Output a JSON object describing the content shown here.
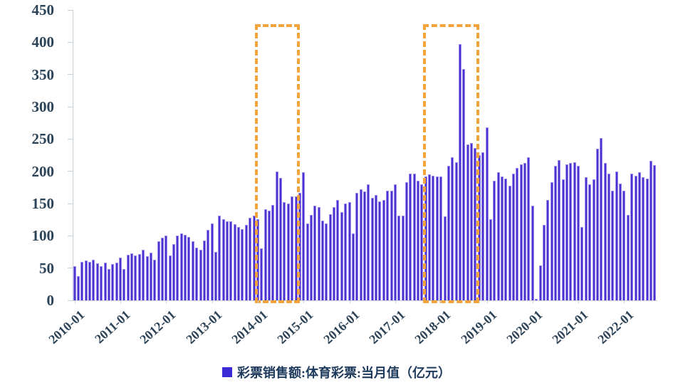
{
  "chart_data": {
    "type": "bar",
    "title": "",
    "legend": "彩票销售额:体育彩票:当月值（亿元）",
    "legend_position": "bottom-center",
    "grid": false,
    "start_month": "2010-01",
    "end_month": "2022-09",
    "ylim": [
      0,
      450
    ],
    "y_ticks": [
      0,
      50,
      100,
      150,
      200,
      250,
      300,
      350,
      400,
      450
    ],
    "x_tick_labels": [
      "2010-01",
      "2011-01",
      "2012-01",
      "2013-01",
      "2014-01",
      "2015-01",
      "2016-01",
      "2017-01",
      "2018-01",
      "2019-01",
      "2020-01",
      "2021-01",
      "2022-01"
    ],
    "bar_color": "#4a31d0",
    "bar_edge_color": "#9a8cec",
    "highlight_color": "#f2a33c",
    "axis_text_color": "#2c4357",
    "highlights": [
      {
        "start": "2013-12",
        "end": "2014-12"
      },
      {
        "start": "2017-08",
        "end": "2018-11"
      }
    ],
    "values": [
      53,
      38,
      60,
      62,
      60,
      63,
      57,
      53,
      58,
      48,
      56,
      58,
      66,
      48,
      71,
      73,
      70,
      72,
      78,
      68,
      74,
      63,
      92,
      97,
      100,
      69,
      87,
      100,
      104,
      102,
      98,
      92,
      82,
      78,
      93,
      109,
      119,
      75,
      131,
      126,
      122,
      122,
      118,
      114,
      110,
      117,
      128,
      131,
      126,
      80,
      141,
      139,
      148,
      200,
      190,
      152,
      150,
      161,
      161,
      167,
      198,
      119,
      132,
      147,
      145,
      123,
      119,
      134,
      145,
      156,
      137,
      150,
      152,
      104,
      167,
      172,
      169,
      180,
      159,
      163,
      153,
      156,
      170,
      170,
      180,
      131,
      131,
      183,
      196,
      196,
      185,
      180,
      192,
      195,
      193,
      192,
      192,
      130,
      209,
      222,
      214,
      397,
      358,
      242,
      244,
      236,
      225,
      229,
      268,
      126,
      185,
      198,
      192,
      189,
      178,
      196,
      205,
      211,
      213,
      222,
      147,
      2,
      54,
      117,
      155,
      183,
      208,
      217,
      187,
      211,
      213,
      214,
      209,
      114,
      191,
      180,
      187,
      235,
      252,
      213,
      196,
      170,
      200,
      181,
      170,
      132,
      196,
      193,
      199,
      191,
      189,
      216,
      210
    ]
  }
}
